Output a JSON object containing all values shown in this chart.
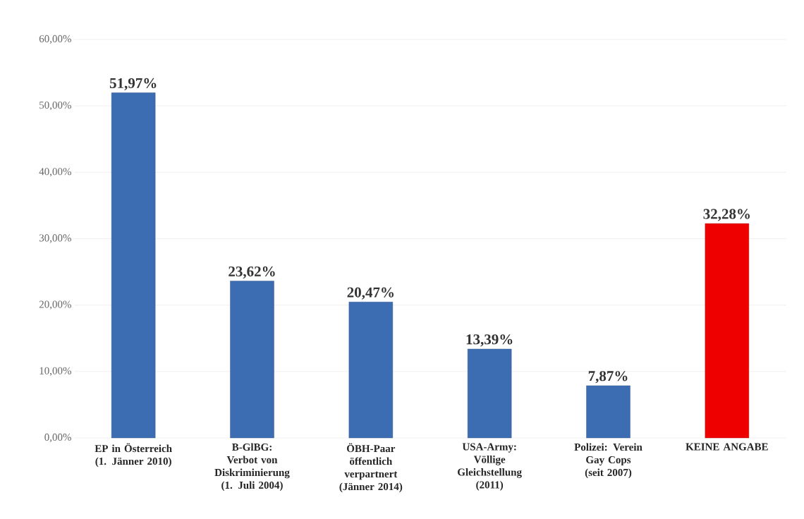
{
  "chart_data": {
    "type": "bar",
    "categories": [
      "EP in Österreich (1. Jänner 2010)",
      "B-GlBG: Verbot von Diskriminierung (1. Juli 2004)",
      "ÖBH-Paar öffentlich verpartnert (Jänner 2014)",
      "USA-Army: Völlige Gleichstellung (2011)",
      "Polizei: Verein Gay Cops (seit 2007)",
      "KEINE ANGABE"
    ],
    "values": [
      51.97,
      23.62,
      20.47,
      13.39,
      7.87,
      32.28
    ],
    "value_labels": [
      "51,97%",
      "23,62%",
      "20,47%",
      "13,39%",
      "7,87%",
      "32,28%"
    ],
    "colors": [
      "#3c6db3",
      "#3c6db3",
      "#3c6db3",
      "#3c6db3",
      "#3c6db3",
      "#ee0000"
    ],
    "ylim": [
      0,
      60
    ],
    "yticks": [
      {
        "value": 0,
        "label": "0,00%"
      },
      {
        "value": 10,
        "label": "10,00%"
      },
      {
        "value": 20,
        "label": "20,00%"
      },
      {
        "value": 30,
        "label": "30,00%"
      },
      {
        "value": 40,
        "label": "40,00%"
      },
      {
        "value": 50,
        "label": "50,00%"
      },
      {
        "value": 60,
        "label": "60,00%"
      }
    ],
    "grid": "y"
  }
}
